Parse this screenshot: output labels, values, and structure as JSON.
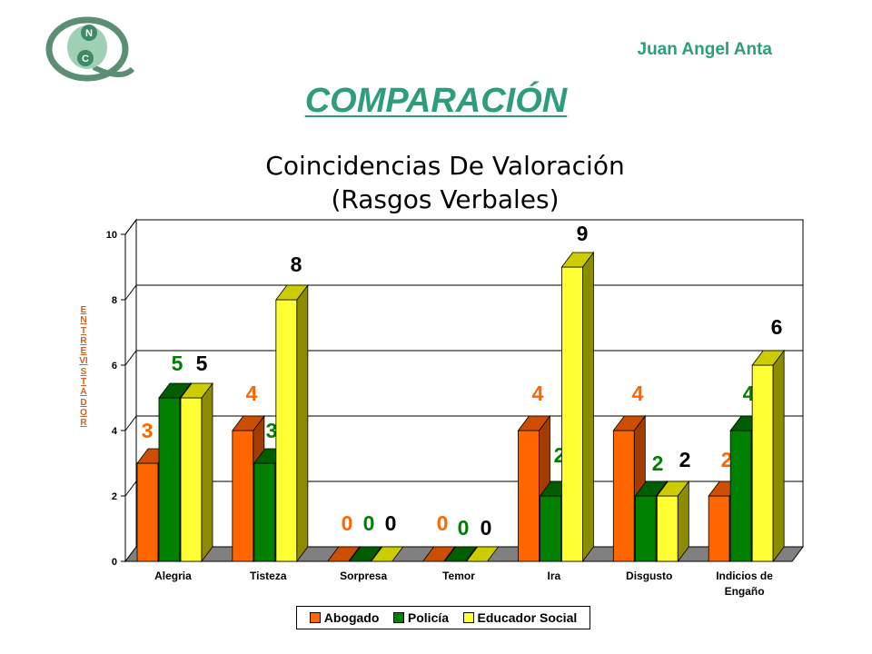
{
  "header": {
    "author": "Juan Angel Anta",
    "heading": "COMPARACIÓN",
    "logo_letters": [
      "N",
      "C"
    ]
  },
  "colors": {
    "accent": "#2e9d7c",
    "series": [
      "#ff6600",
      "#008000",
      "#ffff33"
    ],
    "series_side": [
      "#a33c00",
      "#004d00",
      "#8c8c00"
    ],
    "series_top": [
      "#cc4e00",
      "#005e00",
      "#cccc00"
    ],
    "label_colors": [
      "#ff6600",
      "#008000",
      "#000000"
    ],
    "floor": "#808080",
    "ylabel": "#d4601e"
  },
  "chart_data": {
    "type": "bar",
    "title": [
      "Coincidencias De Valoración",
      "(Rasgos Verbales)"
    ],
    "ylabel": "ENTREVISTADOR",
    "xlabel": "",
    "categories": [
      "Alegria",
      "Tisteza",
      "Sorpresa",
      "Temor",
      "Ira",
      "Disgusto",
      "Indicios de Engaño"
    ],
    "category_lines": [
      [
        "Alegria"
      ],
      [
        "Tisteza"
      ],
      [
        "Sorpresa"
      ],
      [
        "Temor"
      ],
      [
        "Ira"
      ],
      [
        "Disgusto"
      ],
      [
        "Indicios de",
        "Engaño"
      ]
    ],
    "series": [
      {
        "name": "Abogado",
        "values": [
          3,
          4,
          0,
          0,
          4,
          4,
          2
        ]
      },
      {
        "name": "Policía",
        "values": [
          5,
          3,
          0,
          0,
          2,
          2,
          4
        ]
      },
      {
        "name": "Educador Social",
        "values": [
          5,
          8,
          0,
          0,
          9,
          2,
          6
        ]
      }
    ],
    "ylim": [
      0,
      10
    ],
    "yticks": [
      0,
      2,
      4,
      6,
      8,
      10
    ],
    "grid": true,
    "legend_position": "bottom"
  }
}
